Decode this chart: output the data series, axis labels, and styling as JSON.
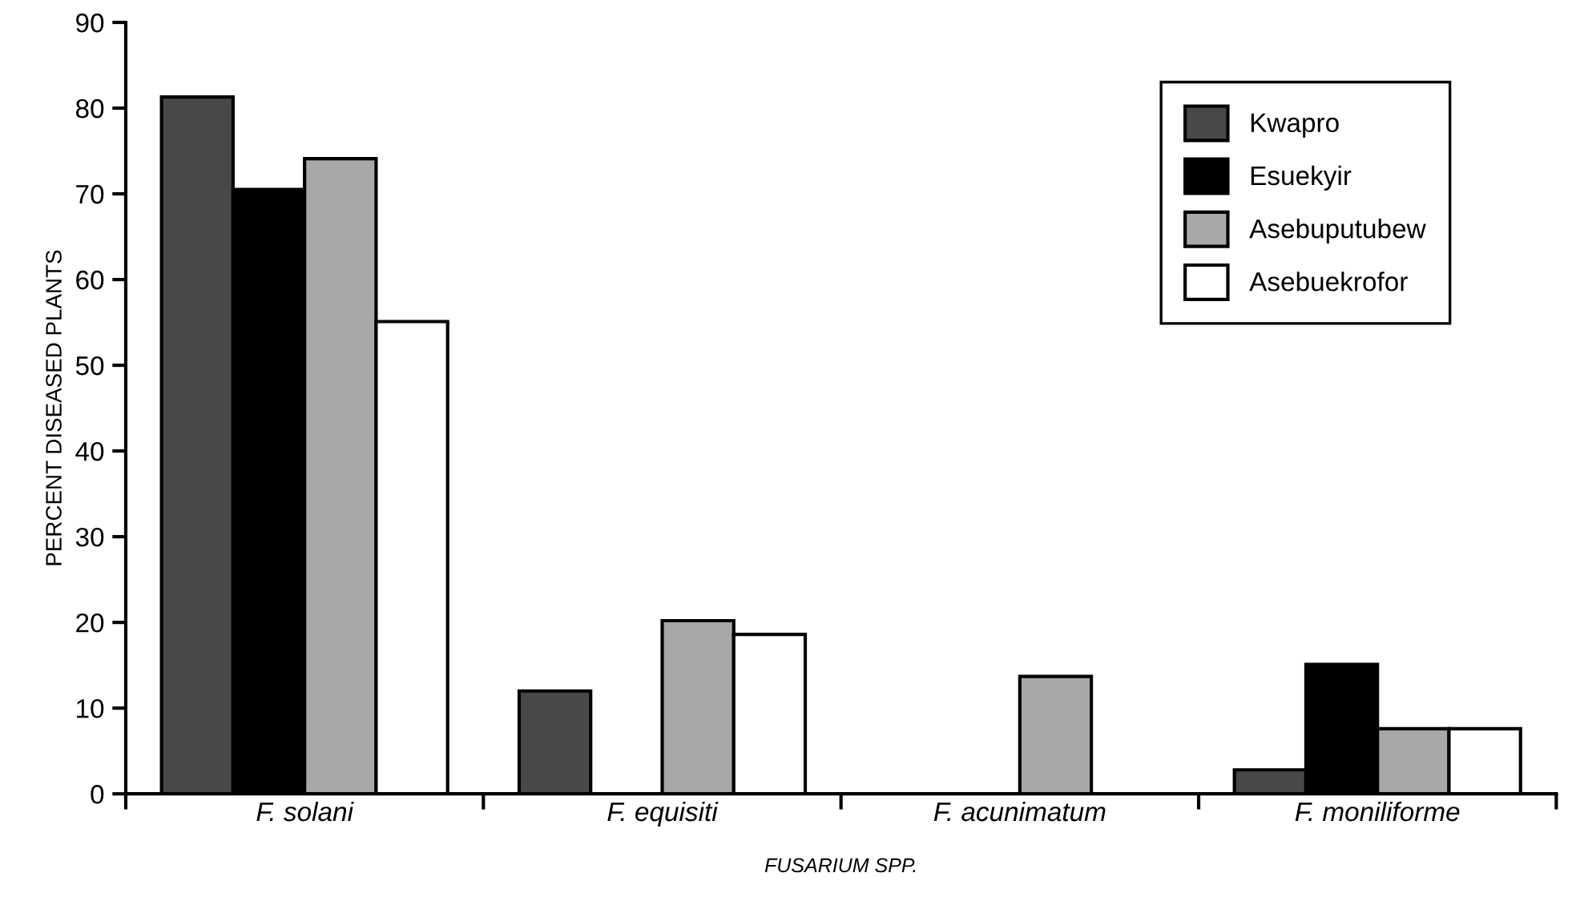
{
  "chart_data": {
    "type": "bar",
    "xlabel": "FUSARIUM SPP.",
    "ylabel": "PERCENT DISEASED PLANTS",
    "categories": [
      "F. solani",
      "F. equisiti",
      "F. acunimatum",
      "F. moniliforme"
    ],
    "series": [
      {
        "name": "Kwapro",
        "color": "#484848",
        "values": [
          81.3,
          12.0,
          null,
          2.8
        ]
      },
      {
        "name": "Esuekyir",
        "color": "#000000",
        "values": [
          70.5,
          null,
          null,
          15.1
        ]
      },
      {
        "name": "Asebuputubew",
        "color": "#a8a8a8",
        "values": [
          74.1,
          20.2,
          13.7,
          7.6
        ]
      },
      {
        "name": "Asebuekrofor",
        "color": "#ffffff",
        "values": [
          55.1,
          18.6,
          null,
          7.6
        ]
      }
    ],
    "ylim": [
      0,
      90
    ],
    "yticks": [
      0,
      10,
      20,
      30,
      40,
      50,
      60,
      70,
      80,
      90
    ],
    "legend": "top right",
    "grid": false
  }
}
